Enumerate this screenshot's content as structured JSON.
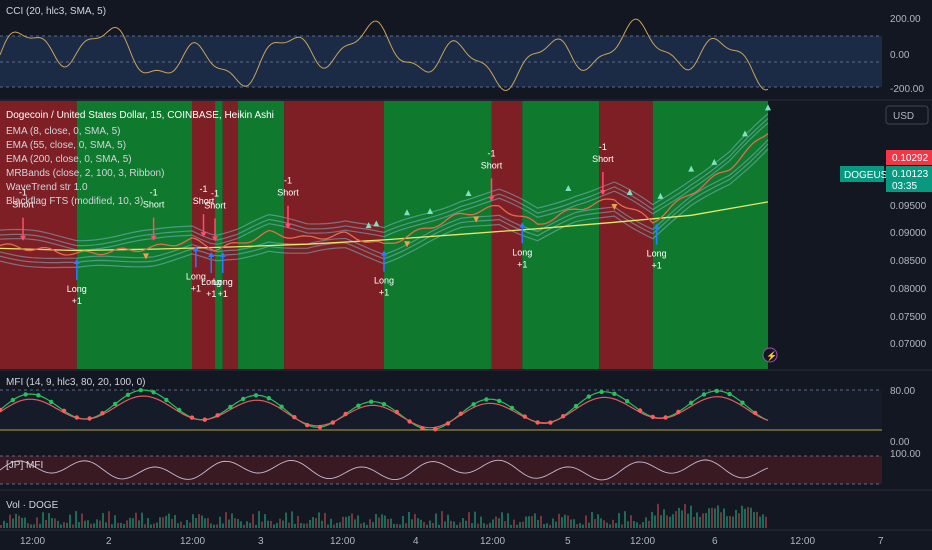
{
  "panes": {
    "cci": {
      "title": "CCI (20, hlc3, SMA, 5)",
      "ticks": [
        "200.00",
        "0.00",
        "-200.00"
      ]
    },
    "main": {
      "title": "Dogecoin / United States Dollar, 15, COINBASE, Heikin Ashi",
      "indicators": [
        "EMA (8, close, 0, SMA, 5)",
        "EMA (55, close, 0, SMA, 5)",
        "EMA (200, close, 0, SMA, 5)",
        "MRBands (close, 2, 100, 3, Ribbon)",
        "WaveTrend str 1.0",
        "Blackflag FTS (modified, 10, 3)"
      ],
      "currency": "USD",
      "ticks": [
        "0.09500",
        "0.09000",
        "0.08500",
        "0.08000",
        "0.07500",
        "0.07000"
      ],
      "symbol_tag": "DOGEUSD",
      "price_tag_red": "0.10292",
      "price_tag_green": "0.10123",
      "countdown": "03:35"
    },
    "mfi": {
      "title": "MFI (14, 9, hlc3, 80, 20, 100, 0)",
      "ticks": [
        "80.00",
        "0.00"
      ]
    },
    "lip": {
      "title": "[JP] MFI",
      "ticks": [
        "100.00"
      ]
    },
    "vol": {
      "title": "Vol · DOGE"
    }
  },
  "signals": {
    "short": {
      "count": "-1",
      "label": "Short"
    },
    "long": {
      "label": "Long",
      "count": "+1"
    }
  },
  "x_axis": [
    "12:00",
    "2",
    "12:00",
    "3",
    "12:00",
    "4",
    "12:00",
    "5",
    "12:00",
    "6",
    "12:00",
    "7"
  ],
  "colors": {
    "bull": "#0f7a2e",
    "bear": "#7e1f25",
    "cci": "#c9a25a",
    "ema200": "#e4e86a",
    "tag_red": "#f23645",
    "tag_green": "#089981"
  },
  "chart_data": {
    "type": "line",
    "title": "Dogecoin / United States Dollar, 15, COINBASE, Heikin Ashi",
    "xlabel": "",
    "ylabel": "USD",
    "ylim": [
      0.0675,
      0.1055
    ],
    "last_price": 0.10123,
    "x_ticks": [
      "12:00",
      "2",
      "12:00",
      "3",
      "12:00",
      "4",
      "12:00",
      "5",
      "12:00",
      "6",
      "12:00",
      "7"
    ],
    "background_regimes": [
      {
        "regime": "bear",
        "from": 0.0,
        "to": 0.1
      },
      {
        "regime": "bull",
        "from": 0.1,
        "to": 0.25
      },
      {
        "regime": "bear",
        "from": 0.25,
        "to": 0.28
      },
      {
        "regime": "bull",
        "from": 0.28,
        "to": 0.29
      },
      {
        "regime": "bear",
        "from": 0.29,
        "to": 0.3
      },
      {
        "regime": "bull",
        "from": 0.3,
        "to": 0.3
      },
      {
        "regime": "bear",
        "from": 0.3,
        "to": 0.31
      },
      {
        "regime": "bull",
        "from": 0.31,
        "to": 0.37
      },
      {
        "regime": "bear",
        "from": 0.37,
        "to": 0.5
      },
      {
        "regime": "bull",
        "from": 0.5,
        "to": 0.64
      },
      {
        "regime": "bear",
        "from": 0.64,
        "to": 0.68
      },
      {
        "regime": "bull",
        "from": 0.68,
        "to": 0.78
      },
      {
        "regime": "bear",
        "from": 0.78,
        "to": 0.85
      },
      {
        "regime": "bull",
        "from": 0.85,
        "to": 1.0
      }
    ],
    "series": [
      {
        "name": "EMA (200, close, 0, SMA, 5)",
        "x": [
          0,
          0.1,
          0.2,
          0.3,
          0.4,
          0.5,
          0.6,
          0.7,
          0.8,
          0.9,
          1.0
        ],
        "values": [
          0.0846,
          0.0843,
          0.0845,
          0.0848,
          0.0852,
          0.0858,
          0.0866,
          0.0874,
          0.0883,
          0.0893,
          0.0912
        ]
      },
      {
        "name": "Price",
        "x": [
          0,
          0.05,
          0.1,
          0.15,
          0.2,
          0.25,
          0.28,
          0.31,
          0.35,
          0.4,
          0.45,
          0.5,
          0.55,
          0.6,
          0.65,
          0.7,
          0.75,
          0.8,
          0.85,
          0.9,
          0.95,
          1.0
        ],
        "values": [
          0.085,
          0.0845,
          0.0838,
          0.0842,
          0.0847,
          0.0858,
          0.0846,
          0.0852,
          0.0868,
          0.086,
          0.0866,
          0.085,
          0.0872,
          0.0894,
          0.0905,
          0.088,
          0.0902,
          0.0916,
          0.0884,
          0.0925,
          0.096,
          0.1012
        ]
      }
    ],
    "short_signals_x": [
      0.03,
      0.2,
      0.265,
      0.28,
      0.375,
      0.64,
      0.785
    ],
    "long_signals_x": [
      0.1,
      0.255,
      0.275,
      0.29,
      0.5,
      0.68,
      0.855
    ]
  }
}
